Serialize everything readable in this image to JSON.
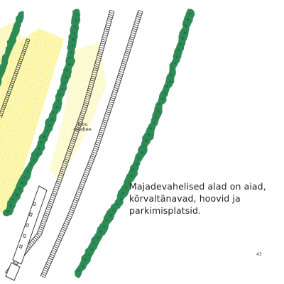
{
  "caption": {
    "lines": [
      "Majadevahelised alad on aiad,",
      "kõrvaltänavad, hoovid ja",
      "parkimisplatsid."
    ]
  },
  "railway_label": {
    "lines": [
      "Tobu",
      "raudtee"
    ]
  },
  "page_number": "43",
  "colors": {
    "tree_row": "#2e8b57",
    "tree_row_dark": "#1f6b45",
    "yard": "#f7ea3a",
    "track": "#3a3a3a",
    "train": "#ffffff"
  }
}
